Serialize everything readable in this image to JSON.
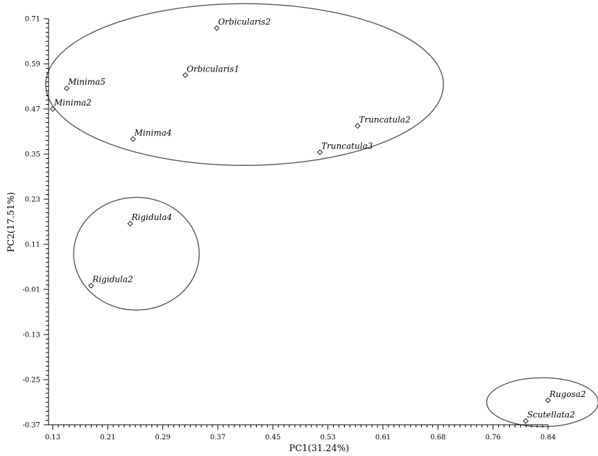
{
  "chart_data": {
    "type": "scatter",
    "xlabel": "PC1(31.24%)",
    "ylabel": "PC2(17.51%)",
    "xlim": [
      0.13,
      0.84
    ],
    "ylim": [
      -0.37,
      0.71
    ],
    "x_ticks": [
      "0.13",
      "0.21",
      "0.29",
      "0.37",
      "0.45",
      "0.53",
      "0.61",
      "0.68",
      "0.76",
      "0.84"
    ],
    "y_ticks": [
      "0.71",
      "0.59",
      "0.47",
      "0.35",
      "0.23",
      "0.11",
      "-0.01",
      "-0.13",
      "-0.25",
      "-0.37"
    ],
    "points": [
      {
        "label": "Orbicularis2",
        "x": 0.365,
        "y": 0.685
      },
      {
        "label": "Orbicularis1",
        "x": 0.32,
        "y": 0.56
      },
      {
        "label": "Minima5",
        "x": 0.15,
        "y": 0.525
      },
      {
        "label": "Minima2",
        "x": 0.13,
        "y": 0.47
      },
      {
        "label": "Minima4",
        "x": 0.245,
        "y": 0.39
      },
      {
        "label": "Truncatula2",
        "x": 0.567,
        "y": 0.425
      },
      {
        "label": "Truncatula3",
        "x": 0.513,
        "y": 0.355
      },
      {
        "label": "Rigidula4",
        "x": 0.241,
        "y": 0.165
      },
      {
        "label": "Rigidula2",
        "x": 0.185,
        "y": 0.0
      },
      {
        "label": "Rugosa2",
        "x": 0.84,
        "y": -0.305
      },
      {
        "label": "Scutellata2",
        "x": 0.808,
        "y": -0.36
      }
    ],
    "clusters": [
      {
        "cx": 0.405,
        "cy": 0.535,
        "rx": 0.285,
        "ry": 0.215
      },
      {
        "cx": 0.25,
        "cy": 0.085,
        "rx": 0.09,
        "ry": 0.15
      },
      {
        "cx": 0.832,
        "cy": -0.31,
        "rx": 0.08,
        "ry": 0.065
      }
    ]
  }
}
